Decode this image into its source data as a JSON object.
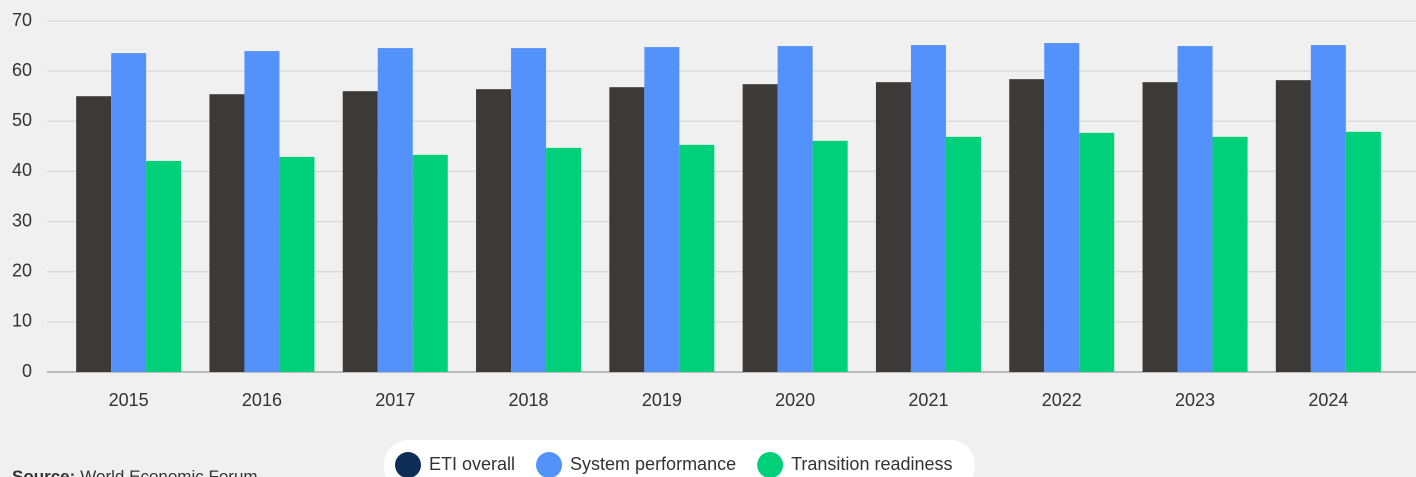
{
  "chart_data": {
    "type": "bar",
    "categories": [
      "2015",
      "2016",
      "2017",
      "2018",
      "2019",
      "2020",
      "2021",
      "2022",
      "2023",
      "2024"
    ],
    "series": [
      {
        "name": "ETI overall",
        "color": "#3c3a38",
        "legend_color": "#0d2d57",
        "values": [
          55.0,
          55.4,
          56.0,
          56.4,
          56.8,
          57.4,
          57.8,
          58.4,
          57.8,
          58.2
        ]
      },
      {
        "name": "System performance",
        "color": "#5391fb",
        "legend_color": "#5391fb",
        "values": [
          63.6,
          64.0,
          64.6,
          64.6,
          64.8,
          65.0,
          65.2,
          65.6,
          65.0,
          65.2
        ]
      },
      {
        "name": "Transition readiness",
        "color": "#00d07a",
        "legend_color": "#00d07a",
        "values": [
          42.1,
          42.9,
          43.3,
          44.7,
          45.3,
          46.1,
          46.9,
          47.7,
          46.9,
          47.9
        ]
      }
    ],
    "ylim": [
      0,
      70
    ],
    "yticks": [
      0,
      10,
      20,
      30,
      40,
      50,
      60,
      70
    ],
    "grid": true,
    "legend": "bottom",
    "source_label": "Source:",
    "source": "World Economic Forum"
  }
}
